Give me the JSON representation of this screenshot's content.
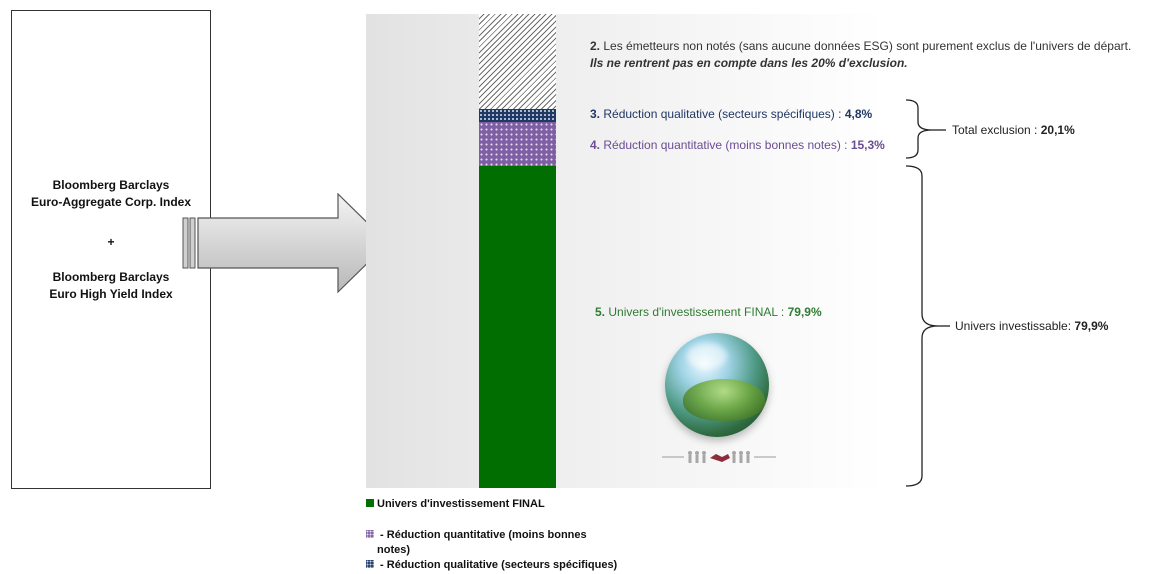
{
  "index_box": {
    "line1": "Bloomberg Barclays",
    "line2": "Euro-Aggregate Corp. Index",
    "plus": "+",
    "line3": "Bloomberg Barclays",
    "line4": "Euro High Yield Index"
  },
  "labels": {
    "excluded_unrated_prefix": "2.",
    "excluded_unrated_text": " Les émetteurs non notés (sans aucune données ESG) sont purement exclus de l'univers de départ.",
    "excluded_unrated_note": "Ils ne rentrent pas en compte dans les 20% d'exclusion.",
    "qualitative_prefix": "3.",
    "qualitative_text": " Réduction qualitative  (secteurs spécifiques) : ",
    "qualitative_value": "4,8%",
    "quantitative_prefix": "4.",
    "quantitative_text": " Réduction quantitative (moins bonnes notes) : ",
    "quantitative_value": "15,3%",
    "final_prefix": "5.",
    "final_text": " Univers d'investissement FINAL : ",
    "final_value": "79,9%",
    "total_exclusion_text": "Total exclusion : ",
    "total_exclusion_value": "20,1%",
    "investable_text": "Univers investissable: ",
    "investable_value": "79,9%"
  },
  "legend": {
    "final": "Univers d'investissement FINAL",
    "quantitative_line1": " - Réduction quantitative (moins bonnes",
    "quantitative_line2": "notes)",
    "qualitative": " - Réduction qualitative (secteurs spécifiques)"
  },
  "colors": {
    "final": "#006e00",
    "quantitative": "#7e5fa3",
    "qualitative": "#1f3864",
    "excluded_hatch": "#6d6d6d"
  },
  "icons": {
    "arrow": "right-arrow-icon",
    "globe": "grass-globe-icon",
    "handshake": "handshake-icon"
  }
}
